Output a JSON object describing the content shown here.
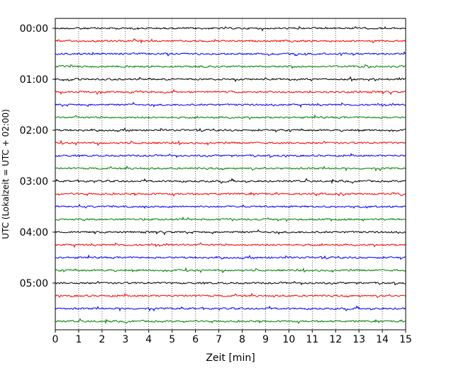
{
  "chart_data": {
    "type": "line",
    "subtype": "helicorder",
    "title": "",
    "xlabel": "Zeit  [min]",
    "ylabel": "UTC (Lokalzeit = UTC + 02:00)",
    "xlim": [
      0,
      15
    ],
    "xticks": [
      0,
      1,
      2,
      3,
      4,
      5,
      6,
      7,
      8,
      9,
      10,
      11,
      12,
      13,
      14,
      15
    ],
    "yticks": [
      "00:00",
      "01:00",
      "02:00",
      "03:00",
      "04:00",
      "05:00"
    ],
    "vertical_grid": true,
    "grid_style": "dotted",
    "traces_per_hour": 4,
    "minutes_per_trace": 15,
    "trace_count": 24,
    "trace_colors": [
      "#000000",
      "#ff0000",
      "#0000ff",
      "#008000"
    ]
  }
}
